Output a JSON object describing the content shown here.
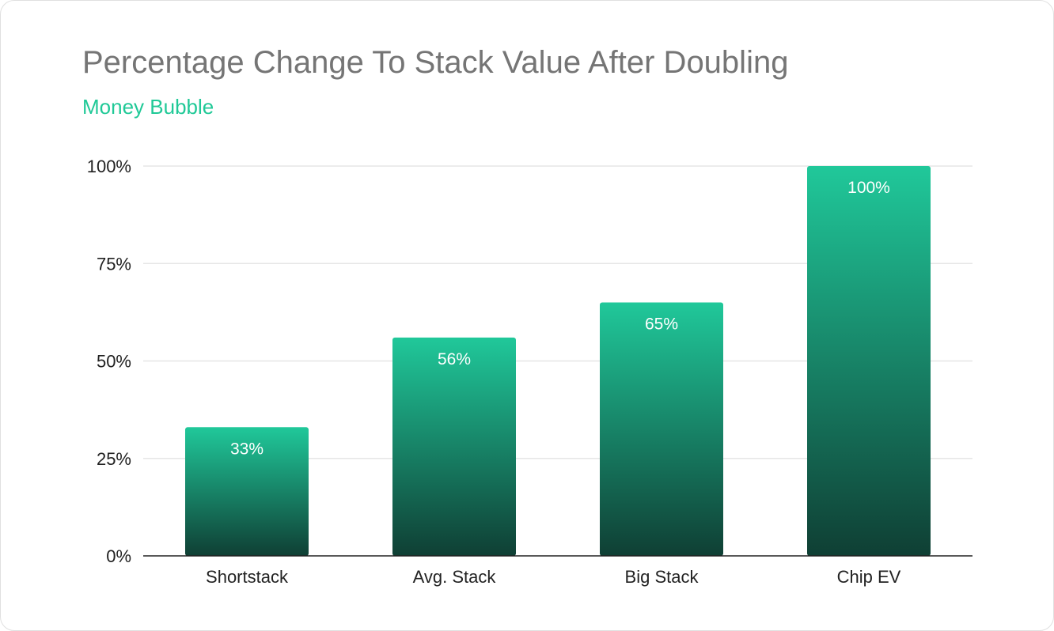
{
  "title": "Percentage Change To Stack Value After Doubling",
  "subtitle": "Money Bubble",
  "colors": {
    "title": "#757575",
    "subtitle": "#20c997",
    "bar_top": "#20c89a",
    "bar_bottom": "#0f3f34",
    "grid": "#e6e6e6",
    "axis": "#222222"
  },
  "chart_data": {
    "type": "bar",
    "categories": [
      "Shortstack",
      "Avg. Stack",
      "Big Stack",
      "Chip EV"
    ],
    "values": [
      33,
      56,
      65,
      100
    ],
    "data_labels": [
      "33%",
      "56%",
      "65%",
      "100%"
    ],
    "title": "Percentage Change To Stack Value After Doubling",
    "subtitle": "Money Bubble",
    "xlabel": "",
    "ylabel": "",
    "ylim": [
      0,
      100
    ],
    "yticks": [
      0,
      25,
      50,
      75,
      100
    ],
    "ytick_labels": [
      "0%",
      "25%",
      "50%",
      "75%",
      "100%"
    ],
    "grid": true,
    "legend": "none"
  }
}
